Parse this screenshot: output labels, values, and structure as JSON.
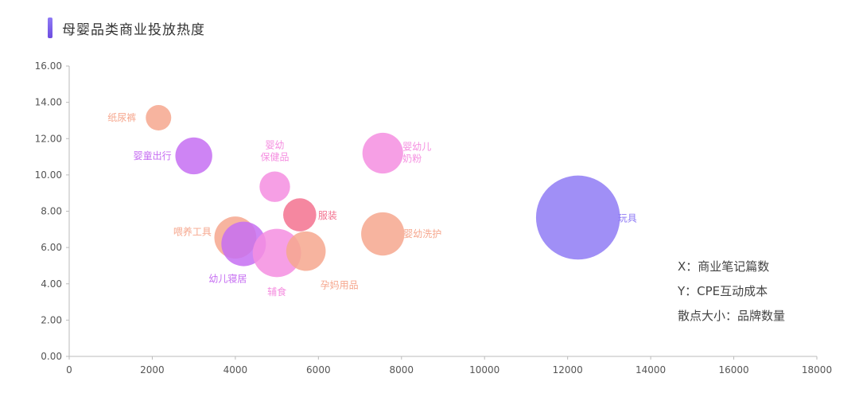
{
  "title": "母婴品类商业投放热度",
  "chart_data": {
    "type": "scatter",
    "xlim": [
      0,
      18000
    ],
    "ylim": [
      0,
      16
    ],
    "x_ticks": [
      "0",
      "2000",
      "4000",
      "6000",
      "8000",
      "10000",
      "12000",
      "14000",
      "16000",
      "18000"
    ],
    "y_ticks": [
      "0.00",
      "2.00",
      "4.00",
      "6.00",
      "8.00",
      "10.00",
      "12.00",
      "14.00",
      "16.00"
    ],
    "grid": false,
    "points": [
      {
        "label": "纸尿裤",
        "x": 2150,
        "y": 13.15,
        "size": 1.0,
        "color": "#f6a78e"
      },
      {
        "label": "婴童出行",
        "x": 3000,
        "y": 11.05,
        "size": 1.45,
        "color": "#c66ef2"
      },
      {
        "label": "婴幼",
        "label2": "保健品",
        "x": 4950,
        "y": 9.35,
        "size": 1.2,
        "color": "#f58ee0"
      },
      {
        "label": "婴幼儿",
        "label2": "奶粉",
        "x": 7550,
        "y": 11.2,
        "size": 1.6,
        "color": "#f58ee0"
      },
      {
        "label": "服装",
        "x": 5550,
        "y": 7.8,
        "size": 1.3,
        "color": "#f3728f"
      },
      {
        "label": "喂养工具",
        "x": 4000,
        "y": 6.55,
        "size": 1.65,
        "color": "#f6a78e"
      },
      {
        "label": "幼儿寝居",
        "x": 4200,
        "y": 6.2,
        "size": 1.75,
        "color": "#c66ef2"
      },
      {
        "label": "辅食",
        "x": 5000,
        "y": 5.7,
        "size": 1.9,
        "color": "#f58ee0"
      },
      {
        "label": "孕妈用品",
        "x": 5700,
        "y": 5.8,
        "size": 1.55,
        "color": "#f6a78e"
      },
      {
        "label": "婴幼洗护",
        "x": 7550,
        "y": 6.75,
        "size": 1.7,
        "color": "#f6a78e"
      },
      {
        "label": "玩具",
        "x": 12250,
        "y": 7.65,
        "size": 3.3,
        "color": "#8f7bf5"
      }
    ]
  },
  "legend": {
    "x_label": "X：商业笔记篇数",
    "y_label": "Y：CPE互动成本",
    "size_label": "散点大小：品牌数量"
  }
}
